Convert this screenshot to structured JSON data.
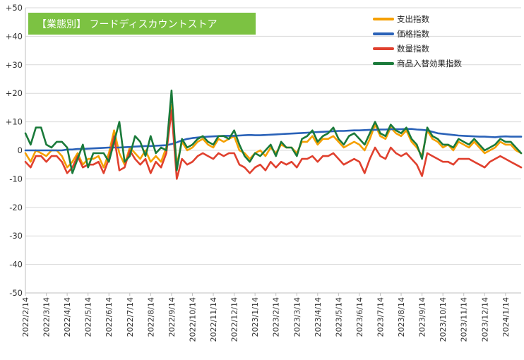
{
  "chart_data": {
    "type": "line",
    "title": "【業態別】 フードディスカウントストア",
    "title_bg": "#7cc242",
    "ylim": [
      -50,
      50
    ],
    "yticks": [
      50,
      40,
      30,
      20,
      10,
      0,
      -10,
      -20,
      -30,
      -40,
      -50
    ],
    "ytick_labels": [
      "+50",
      "+40",
      "+30",
      "+20",
      "+10",
      "0",
      "-10",
      "-20",
      "-30",
      "-40",
      "-50"
    ],
    "x_tick_labels": [
      "2022/2/14",
      "2022/3/14",
      "2022/4/14",
      "2022/5/14",
      "2022/6/14",
      "2022/7/14",
      "2022/8/14",
      "2022/9/14",
      "2022/10/14",
      "2022/11/14",
      "2022/12/14",
      "2023/1/14",
      "2023/2/14",
      "2023/3/14",
      "2023/4/14",
      "2023/5/14",
      "2023/6/14",
      "2023/7/14",
      "2023/8/14",
      "2023/9/14",
      "2023/10/14",
      "2023/11/14",
      "2023/12/14",
      "2024/1/14"
    ],
    "x_tick_positions": [
      0,
      4,
      8,
      12,
      16,
      20,
      24,
      28,
      32,
      36,
      40,
      44,
      48,
      52,
      56,
      60,
      64,
      68,
      72,
      76,
      80,
      84,
      88,
      92
    ],
    "n_points": 96,
    "grid": true,
    "legend_position": "top-right",
    "series": [
      {
        "name": "支出指数",
        "color": "#f5a000",
        "values": [
          -1,
          -4,
          0,
          -1,
          -2,
          0,
          0,
          -2,
          -6,
          -4,
          -1,
          -5,
          -3,
          -3,
          -2,
          -6,
          -1,
          7,
          -1,
          -5,
          1,
          -1,
          -3,
          0,
          -4,
          -2,
          -4,
          1,
          16,
          -5,
          3,
          0,
          1,
          3,
          4,
          2,
          1,
          4,
          3,
          4,
          5,
          0,
          -1,
          -3,
          -1,
          0,
          -2,
          1,
          -1,
          2,
          1,
          1,
          -1,
          3,
          3,
          5,
          2,
          4,
          4,
          5,
          3,
          1,
          2,
          3,
          2,
          0,
          4,
          9,
          5,
          4,
          8,
          6,
          5,
          7,
          3,
          1,
          -2,
          7,
          4,
          3,
          1,
          2,
          0,
          3,
          2,
          1,
          3,
          1,
          -1,
          0,
          1,
          3,
          2,
          2,
          0,
          -1
        ]
      },
      {
        "name": "価格指数",
        "color": "#2a62b8",
        "values": [
          0,
          0,
          0,
          0,
          0,
          0,
          0,
          0,
          0.3,
          0.3,
          0.5,
          0.5,
          0.6,
          0.7,
          0.8,
          0.9,
          1,
          1,
          1,
          1.1,
          1.2,
          1.3,
          1.4,
          1.5,
          1.5,
          1.6,
          1.7,
          1.8,
          2.2,
          2.8,
          3.5,
          4,
          4.3,
          4.5,
          4.7,
          4.8,
          4.9,
          5,
          5.1,
          5.1,
          5.1,
          5.2,
          5.3,
          5.4,
          5.3,
          5.3,
          5.4,
          5.5,
          5.6,
          5.7,
          5.8,
          5.9,
          6,
          6.1,
          6.2,
          6.3,
          6.4,
          6.5,
          6.6,
          6.7,
          6.8,
          6.8,
          6.9,
          7,
          7,
          7.1,
          7.2,
          7.2,
          7.3,
          7.3,
          7.4,
          7.4,
          7.4,
          7.5,
          7.5,
          7.3,
          7.2,
          7,
          6.5,
          6,
          5.8,
          5.6,
          5.4,
          5.2,
          5.1,
          5,
          4.9,
          4.8,
          4.8,
          4.7,
          4.6,
          4.8,
          4.9,
          4.8,
          4.8,
          4.8
        ]
      },
      {
        "name": "数量指数",
        "color": "#e0402e",
        "values": [
          -4,
          -6,
          -2,
          -2,
          -4,
          -2,
          -2,
          -4,
          -8,
          -6,
          -2,
          -6,
          -5,
          -5,
          -4,
          -8,
          -3,
          5,
          -7,
          -6,
          0,
          -3,
          -5,
          -3,
          -8,
          -4,
          -6,
          -1,
          14,
          -10,
          -3,
          -5,
          -4,
          -2,
          -1,
          -2,
          -3,
          -1,
          -2,
          -1,
          -1,
          -5,
          -6,
          -8,
          -6,
          -5,
          -7,
          -4,
          -6,
          -4,
          -5,
          -4,
          -6,
          -3,
          -3,
          -2,
          -4,
          -2,
          -2,
          -1,
          -3,
          -5,
          -4,
          -3,
          -4,
          -8,
          -3,
          1,
          -2,
          -3,
          1,
          -1,
          -2,
          -1,
          -3,
          -5,
          -9,
          -1,
          -2,
          -3,
          -4,
          -4,
          -5,
          -3,
          -3,
          -3,
          -4,
          -5,
          -6,
          -4,
          -3,
          -2,
          -3,
          -4,
          -5,
          -6
        ]
      },
      {
        "name": "商品入替効果指数",
        "color": "#1a7a3a",
        "values": [
          6,
          2,
          8,
          8,
          2,
          1,
          3,
          3,
          1,
          -8,
          -3,
          2,
          -6,
          -1,
          -1,
          -1,
          -4,
          3,
          10,
          -4,
          -2,
          5,
          3,
          -2,
          5,
          -1,
          1,
          0,
          21,
          -7,
          4,
          1,
          2,
          4,
          5,
          3,
          2,
          5,
          5,
          4,
          7,
          2,
          -2,
          -4,
          -1,
          -2,
          0,
          2,
          -2,
          3,
          1,
          1,
          -2,
          4,
          5,
          7,
          3,
          5,
          6,
          8,
          4,
          2,
          5,
          6,
          4,
          2,
          6,
          10,
          6,
          5,
          9,
          7,
          6,
          8,
          4,
          2,
          -3,
          8,
          5,
          4,
          2,
          2,
          1,
          4,
          3,
          2,
          4,
          2,
          0,
          1,
          2,
          4,
          3,
          3,
          1,
          -1
        ]
      }
    ]
  }
}
